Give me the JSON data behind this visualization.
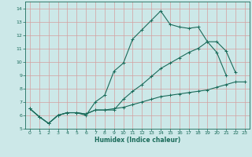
{
  "xlabel": "Humidex (Indice chaleur)",
  "bg_color": "#cce8e8",
  "grid_color": "#d4a0a0",
  "line_color": "#1a6b5a",
  "xlim": [
    -0.5,
    23.5
  ],
  "ylim": [
    5,
    14.5
  ],
  "xticks": [
    0,
    1,
    2,
    3,
    4,
    5,
    6,
    7,
    8,
    9,
    10,
    11,
    12,
    13,
    14,
    15,
    16,
    17,
    18,
    19,
    20,
    21,
    22,
    23
  ],
  "yticks": [
    5,
    6,
    7,
    8,
    9,
    10,
    11,
    12,
    13,
    14
  ],
  "line1_x": [
    0,
    1,
    2,
    3,
    4,
    5,
    6,
    7,
    8,
    9,
    10,
    11,
    12,
    13,
    14,
    15,
    16,
    17,
    18,
    19,
    20,
    21
  ],
  "line1_y": [
    6.5,
    5.9,
    5.4,
    6.0,
    6.2,
    6.2,
    6.0,
    7.0,
    7.5,
    9.3,
    9.9,
    11.7,
    12.4,
    13.1,
    13.8,
    12.8,
    12.6,
    12.5,
    12.6,
    11.5,
    10.7,
    9.0
  ],
  "line2_x": [
    0,
    1,
    2,
    3,
    4,
    5,
    6,
    7,
    8,
    9,
    10,
    11,
    12,
    13,
    14,
    15,
    16,
    17,
    18,
    19,
    20,
    21,
    22
  ],
  "line2_y": [
    6.5,
    5.9,
    5.4,
    6.0,
    6.2,
    6.2,
    6.1,
    6.4,
    6.4,
    6.4,
    7.2,
    7.8,
    8.3,
    8.9,
    9.5,
    9.9,
    10.3,
    10.7,
    11.0,
    11.5,
    11.5,
    10.8,
    9.2
  ],
  "line3_x": [
    0,
    1,
    2,
    3,
    4,
    5,
    6,
    7,
    8,
    9,
    10,
    11,
    12,
    13,
    14,
    15,
    16,
    17,
    18,
    19,
    20,
    21,
    22,
    23
  ],
  "line3_y": [
    6.5,
    5.9,
    5.4,
    6.0,
    6.2,
    6.2,
    6.1,
    6.4,
    6.4,
    6.5,
    6.6,
    6.8,
    7.0,
    7.2,
    7.4,
    7.5,
    7.6,
    7.7,
    7.8,
    7.9,
    8.1,
    8.3,
    8.5,
    8.5
  ],
  "marker": "+",
  "markersize": 3,
  "linewidth": 0.8
}
